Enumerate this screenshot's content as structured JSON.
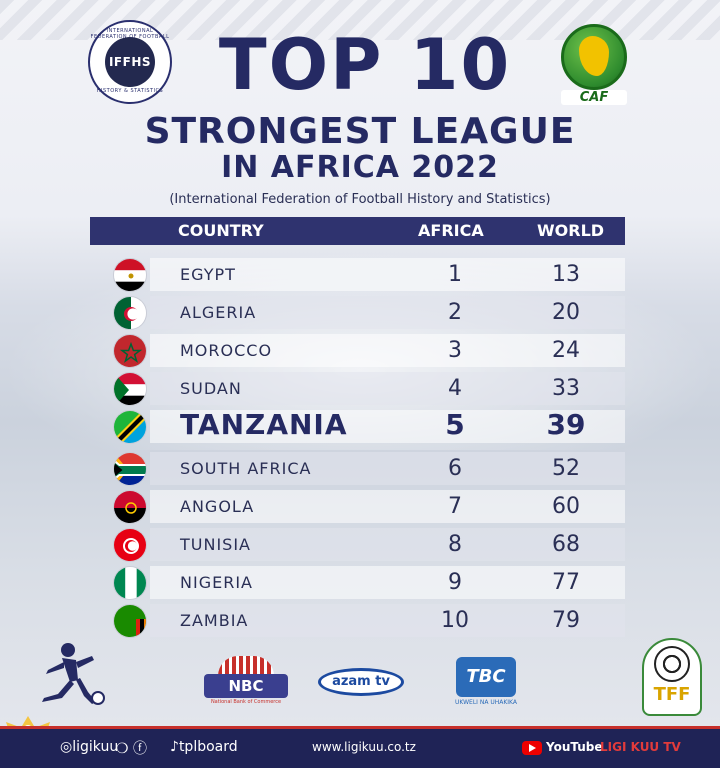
{
  "header": {
    "ifhs_logo": {
      "core": "IFFHS",
      "ring_top": "INTERNATIONAL FEDERATION OF FOOTBALL",
      "ring_bottom": "HISTORY & STATISTICS"
    },
    "caf_logo": {
      "label": "CAF"
    },
    "title_line1": "TOP 10",
    "title_line2": "STRONGEST LEAGUE",
    "title_line3": "IN AFRICA 2022",
    "subtitle": "(International Federation of Football History and Statistics)"
  },
  "table": {
    "columns": {
      "country": "COUNTRY",
      "africa": "AFRICA",
      "world": "WORLD"
    },
    "rows": [
      {
        "country": "EGYPT",
        "africa": "1",
        "world": "13",
        "flag": "egypt-flag"
      },
      {
        "country": "ALGERIA",
        "africa": "2",
        "world": "20",
        "flag": "algeria-flag"
      },
      {
        "country": "MOROCCO",
        "africa": "3",
        "world": "24",
        "flag": "morocco-flag"
      },
      {
        "country": "SUDAN",
        "africa": "4",
        "world": "33",
        "flag": "sudan-flag"
      },
      {
        "country": "TANZANIA",
        "africa": "5",
        "world": "39",
        "flag": "tanzania-flag",
        "highlight": true
      },
      {
        "country": "SOUTH AFRICA",
        "africa": "6",
        "world": "52",
        "flag": "south-africa-flag"
      },
      {
        "country": "ANGOLA",
        "africa": "7",
        "world": "60",
        "flag": "angola-flag"
      },
      {
        "country": "TUNISIA",
        "africa": "8",
        "world": "68",
        "flag": "tunisia-flag"
      },
      {
        "country": "NIGERIA",
        "africa": "9",
        "world": "77",
        "flag": "nigeria-flag"
      },
      {
        "country": "ZAMBIA",
        "africa": "10",
        "world": "79",
        "flag": "zambia-flag"
      }
    ]
  },
  "sponsors": {
    "nbc": {
      "name": "NBC",
      "tagline": "National Bank of Commerce"
    },
    "azam": {
      "name": "azam tv"
    },
    "tbc": {
      "name": "TBC",
      "tagline": "UKWELI NA UHAKIKA"
    },
    "tff": {
      "letters": "TFF"
    }
  },
  "footer": {
    "handle": "ligikuu",
    "tpl_handle": "tplboard",
    "website": "www.ligikuu.co.tz",
    "youtube_label": "YouTube",
    "youtube_channel": "LIGI KUU TV"
  },
  "colors": {
    "navy": "#252a63",
    "header_bar": "#2f336f",
    "footer_bar": "#1f2356",
    "accent_red": "#c7302b"
  }
}
